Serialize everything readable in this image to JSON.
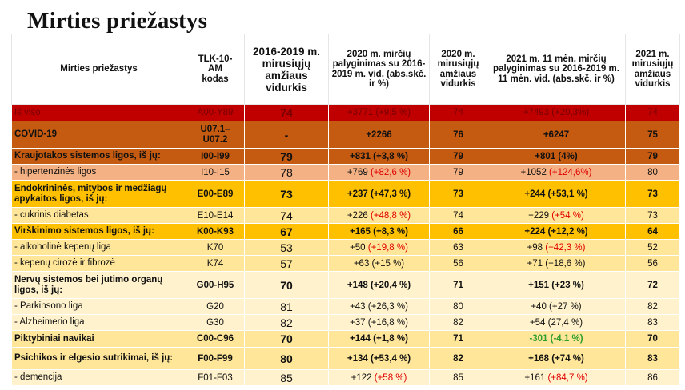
{
  "title": "Mirties priežastys",
  "headers": {
    "cause": "Mirties priežastys",
    "code": "TLK-10-AM kodas",
    "avg_2016_2019": "2016-2019 m. mirusiųjų amžiaus vidurkis",
    "cmp_2020": "2020 m. mirčių palyginimas su 2016-2019 m. vid. (abs.skč. ir %)",
    "avg_2020": "2020 m. mirusiųjų amžiaus vidurkis",
    "cmp_2021": "2021 m. 11 mėn. mirčių palyginimas su 2016-2019 m. 11 mėn. vid. (abs.skč. ir %)",
    "avg_2021": "2021 m. mirusiųjų amžiaus vidurkis"
  },
  "rows": [
    {
      "cause": "Iš viso",
      "code": "A00-Y89",
      "avg1": "74",
      "cmp2020": "+3771 (+9,5 %)",
      "cmp2020_red": "",
      "avg2020": "74",
      "cmp2021": "+7493 (+20,3%)",
      "cmp2021_color": "",
      "avg2021": "74"
    },
    {
      "cause": "COVID-19",
      "code": "U07.1–U07.2",
      "avg1": "-",
      "cmp2020": "+2266",
      "cmp2020_red": "",
      "avg2020": "76",
      "cmp2021": "+6247",
      "cmp2021_color": "",
      "avg2021": "75"
    },
    {
      "cause": "Kraujotakos sistemos ligos, iš jų:",
      "code": "I00-I99",
      "avg1": "79",
      "cmp2020": "+831 (+3,8 %)",
      "cmp2020_red": "",
      "avg2020": "79",
      "cmp2021": "+801 (4%)",
      "cmp2021_color": "",
      "avg2021": "79"
    },
    {
      "cause": "- hipertenzinės ligos",
      "code": "I10-I15",
      "avg1": "78",
      "cmp2020": "+769 ",
      "cmp2020_red": "(+82,6 %)",
      "avg2020": "79",
      "cmp2021": "+1052 ",
      "cmp2021_color": "(+124,6%)",
      "avg2021": "80"
    },
    {
      "cause": "Endokrininės, mitybos ir medžiagų apykaitos ligos, iš jų:",
      "code": "E00-E89",
      "avg1": "73",
      "cmp2020": "+237 (+47,3 %)",
      "cmp2020_red": "",
      "avg2020": "73",
      "cmp2021": "+244 (+53,1 %)",
      "cmp2021_color": "",
      "avg2021": "73"
    },
    {
      "cause": "- cukrinis diabetas",
      "code": "E10-E14",
      "avg1": "74",
      "cmp2020": "+226 ",
      "cmp2020_red": "(+48,8 %)",
      "avg2020": "74",
      "cmp2021": "+229 ",
      "cmp2021_color": "(+54 %)",
      "avg2021": "73"
    },
    {
      "cause": "Virškinimo sistemos ligos, iš jų:",
      "code": "K00-K93",
      "avg1": "67",
      "cmp2020": "+165 (+8,3 %)",
      "cmp2020_red": "",
      "avg2020": "66",
      "cmp2021": "+224 (+12,2 %)",
      "cmp2021_color": "",
      "avg2021": "64"
    },
    {
      "cause": "- alkoholinė kepenų liga",
      "code": "K70",
      "avg1": "53",
      "cmp2020": "+50 ",
      "cmp2020_red": "(+19,8 %)",
      "avg2020": "63",
      "cmp2021": "+98 ",
      "cmp2021_color": "(+42,3 %)",
      "avg2021": "52"
    },
    {
      "cause": "- kepenų cirozė ir fibrozė",
      "code": "K74",
      "avg1": "57",
      "cmp2020": "+63 (+15 %)",
      "cmp2020_red": "",
      "avg2020": "56",
      "cmp2021": "+71 (+18,6 %)",
      "cmp2021_color": "",
      "avg2021": "56"
    },
    {
      "cause": "Nervų sistemos bei jutimo organų ligos, iš jų:",
      "code": "G00-H95",
      "avg1": "70",
      "cmp2020": "+148 (+20,4 %)",
      "cmp2020_red": "",
      "avg2020": "71",
      "cmp2021": "+151 (+23 %)",
      "cmp2021_color": "",
      "avg2021": "72"
    },
    {
      "cause": "- Parkinsono liga",
      "code": "G20",
      "avg1": "81",
      "cmp2020": "+43 (+26,3 %)",
      "cmp2020_red": "",
      "avg2020": "80",
      "cmp2021": "+40 (+27 %)",
      "cmp2021_color": "",
      "avg2021": "82"
    },
    {
      "cause": "- Alzheimerio liga",
      "code": "G30",
      "avg1": "82",
      "cmp2020": "+37 (+16,8 %)",
      "cmp2020_red": "",
      "avg2020": "82",
      "cmp2021": "+54 (27,4 %)",
      "cmp2021_color": "",
      "avg2021": "83"
    },
    {
      "cause": "Piktybiniai navikai",
      "code": "C00-C96",
      "avg1": "70",
      "cmp2020": "+144 (+1,8 %)",
      "cmp2020_red": "",
      "avg2020": "71",
      "cmp2021": "-301 (-4,1 %)",
      "cmp2021_color": "",
      "avg2021": "70"
    },
    {
      "cause": "Psichikos ir elgesio sutrikimai, iš jų:",
      "code": "F00-F99",
      "avg1": "80",
      "cmp2020": "+134 (+53,4 %)",
      "cmp2020_red": "",
      "avg2020": "82",
      "cmp2021": "+168 (+74 %)",
      "cmp2021_color": "",
      "avg2021": "83"
    },
    {
      "cause": "- demencija",
      "code": "F01-F03",
      "avg1": "85",
      "cmp2020": "+122 ",
      "cmp2020_red": "(+58 %)",
      "avg2020": "85",
      "cmp2021": "+161 ",
      "cmp2021_color": "(+84,7 %)",
      "avg2021": "86"
    }
  ],
  "colors": {
    "total": "#c00000",
    "covid": "#c55a11",
    "group_dark": "#c55a11",
    "sub_salmon": "#f4b183",
    "group_yellow": "#ffc000",
    "sub_lightyellow": "#ffe699",
    "pale": "#fff2cc",
    "highlight_red": "#e00000",
    "highlight_green": "#2e9e2e"
  }
}
